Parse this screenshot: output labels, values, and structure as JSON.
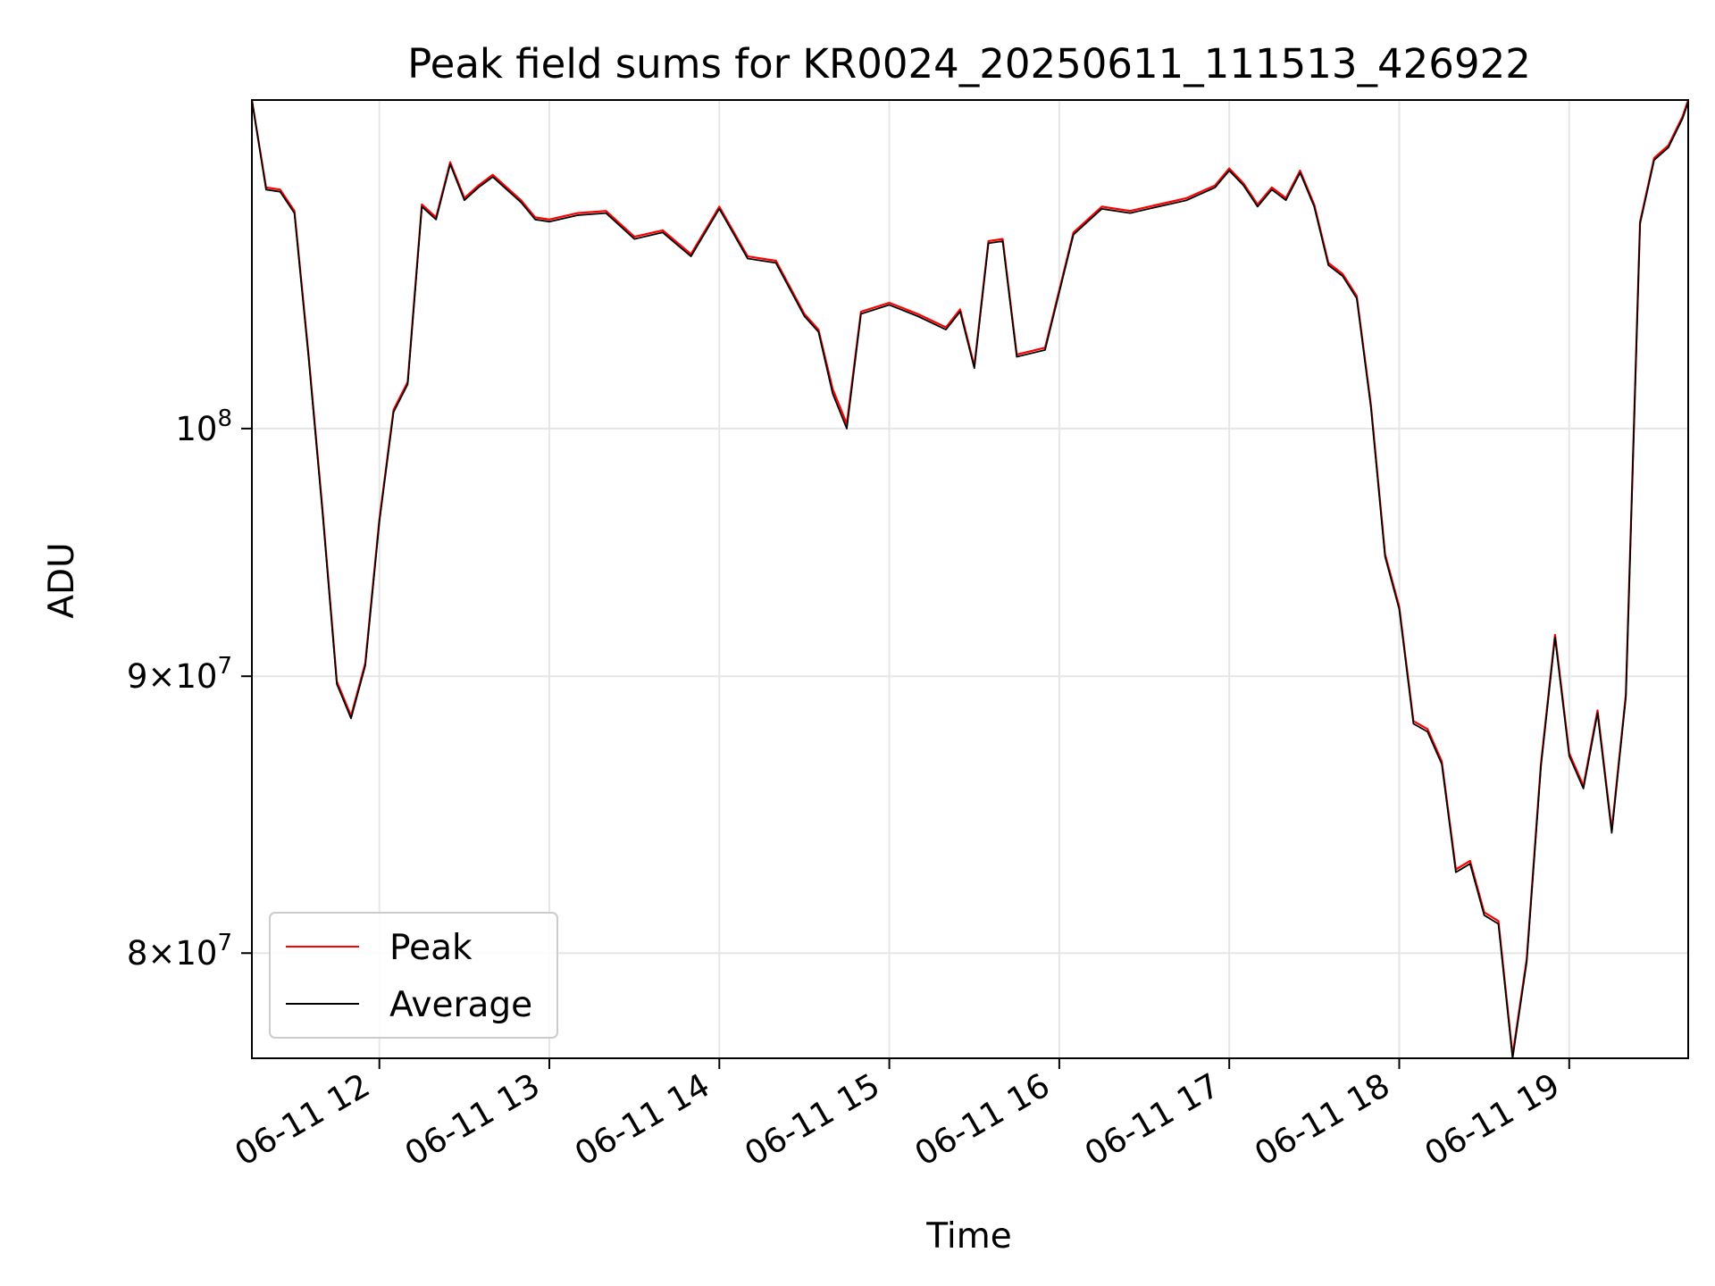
{
  "chart_data": {
    "type": "line",
    "title": "Peak field sums for KR0024_20250611_111513_426922",
    "xlabel": "Time",
    "ylabel": "ADU",
    "yscale": "log",
    "xlim": [
      "2025-06-11 11:15",
      "2025-06-11 19:42"
    ],
    "ylim": [
      76500000,
      115000000
    ],
    "grid": true,
    "legend_position": "lower-left",
    "x_ticks": [
      {
        "value": "2025-06-11 12:00",
        "label": "06-11 12"
      },
      {
        "value": "2025-06-11 13:00",
        "label": "06-11 13"
      },
      {
        "value": "2025-06-11 14:00",
        "label": "06-11 14"
      },
      {
        "value": "2025-06-11 15:00",
        "label": "06-11 15"
      },
      {
        "value": "2025-06-11 16:00",
        "label": "06-11 16"
      },
      {
        "value": "2025-06-11 17:00",
        "label": "06-11 17"
      },
      {
        "value": "2025-06-11 18:00",
        "label": "06-11 18"
      },
      {
        "value": "2025-06-11 19:00",
        "label": "06-11 19"
      }
    ],
    "y_ticks": [
      {
        "value": 80000000,
        "base": "8",
        "exp": "7"
      },
      {
        "value": 90000000,
        "base": "9",
        "exp": "7"
      },
      {
        "value": 100000000,
        "base": "10",
        "exp": "8"
      }
    ],
    "x": [
      "2025-06-11 11:15",
      "2025-06-11 11:20",
      "2025-06-11 11:25",
      "2025-06-11 11:30",
      "2025-06-11 11:35",
      "2025-06-11 11:40",
      "2025-06-11 11:45",
      "2025-06-11 11:50",
      "2025-06-11 11:55",
      "2025-06-11 12:00",
      "2025-06-11 12:05",
      "2025-06-11 12:10",
      "2025-06-11 12:15",
      "2025-06-11 12:20",
      "2025-06-11 12:25",
      "2025-06-11 12:30",
      "2025-06-11 12:35",
      "2025-06-11 12:40",
      "2025-06-11 12:45",
      "2025-06-11 12:50",
      "2025-06-11 12:55",
      "2025-06-11 13:00",
      "2025-06-11 13:10",
      "2025-06-11 13:20",
      "2025-06-11 13:30",
      "2025-06-11 13:40",
      "2025-06-11 13:50",
      "2025-06-11 14:00",
      "2025-06-11 14:10",
      "2025-06-11 14:20",
      "2025-06-11 14:30",
      "2025-06-11 14:35",
      "2025-06-11 14:40",
      "2025-06-11 14:45",
      "2025-06-11 14:50",
      "2025-06-11 15:00",
      "2025-06-11 15:10",
      "2025-06-11 15:20",
      "2025-06-11 15:25",
      "2025-06-11 15:30",
      "2025-06-11 15:35",
      "2025-06-11 15:40",
      "2025-06-11 15:45",
      "2025-06-11 15:55",
      "2025-06-11 16:05",
      "2025-06-11 16:15",
      "2025-06-11 16:25",
      "2025-06-11 16:35",
      "2025-06-11 16:45",
      "2025-06-11 16:55",
      "2025-06-11 17:00",
      "2025-06-11 17:05",
      "2025-06-11 17:10",
      "2025-06-11 17:15",
      "2025-06-11 17:20",
      "2025-06-11 17:25",
      "2025-06-11 17:30",
      "2025-06-11 17:35",
      "2025-06-11 17:40",
      "2025-06-11 17:45",
      "2025-06-11 17:50",
      "2025-06-11 17:55",
      "2025-06-11 18:00",
      "2025-06-11 18:05",
      "2025-06-11 18:10",
      "2025-06-11 18:15",
      "2025-06-11 18:20",
      "2025-06-11 18:25",
      "2025-06-11 18:30",
      "2025-06-11 18:35",
      "2025-06-11 18:40",
      "2025-06-11 18:45",
      "2025-06-11 18:50",
      "2025-06-11 18:55",
      "2025-06-11 19:00",
      "2025-06-11 19:05",
      "2025-06-11 19:10",
      "2025-06-11 19:15",
      "2025-06-11 19:20",
      "2025-06-11 19:25",
      "2025-06-11 19:30",
      "2025-06-11 19:35",
      "2025-06-11 19:40",
      "2025-06-11 19:42"
    ],
    "series": [
      {
        "name": "Peak",
        "color": "#ff0000",
        "values": [
          115000000,
          110800000,
          110700000,
          109700000,
          103200000,
          96500000,
          89800000,
          88500000,
          90500000,
          96200000,
          100800000,
          102000000,
          110000000,
          109400000,
          112000000,
          110300000,
          110900000,
          111400000,
          110800000,
          110200000,
          109400000,
          109300000,
          109600000,
          109700000,
          108500000,
          108800000,
          107700000,
          109900000,
          107600000,
          107400000,
          105000000,
          104300000,
          101700000,
          100200000,
          105100000,
          105500000,
          105000000,
          104400000,
          105200000,
          102700000,
          108300000,
          108400000,
          103200000,
          103500000,
          108700000,
          109900000,
          109700000,
          110000000,
          110300000,
          110900000,
          111700000,
          111000000,
          110000000,
          110800000,
          110300000,
          111600000,
          110000000,
          107300000,
          106800000,
          105800000,
          101000000,
          94800000,
          92700000,
          88300000,
          88000000,
          86800000,
          82900000,
          83200000,
          81400000,
          81100000,
          76600000,
          79800000,
          86700000,
          91600000,
          87100000,
          85900000,
          88700000,
          84300000,
          89300000,
          109200000,
          112200000,
          112800000,
          114200000,
          115000000
        ]
      },
      {
        "name": "Average",
        "color": "#000000",
        "values": [
          115000000,
          110700000,
          110600000,
          109600000,
          103100000,
          96400000,
          89700000,
          88400000,
          90400000,
          96100000,
          100700000,
          101900000,
          109900000,
          109300000,
          111900000,
          110200000,
          110800000,
          111300000,
          110700000,
          110100000,
          109300000,
          109200000,
          109500000,
          109600000,
          108400000,
          108700000,
          107600000,
          109800000,
          107500000,
          107300000,
          104900000,
          104200000,
          101500000,
          100000000,
          105000000,
          105400000,
          104900000,
          104300000,
          105100000,
          102600000,
          108200000,
          108300000,
          103100000,
          103400000,
          108600000,
          109800000,
          109600000,
          109900000,
          110200000,
          110800000,
          111600000,
          110900000,
          109900000,
          110700000,
          110200000,
          111500000,
          109900000,
          107200000,
          106700000,
          105700000,
          100900000,
          94700000,
          92600000,
          88200000,
          87900000,
          86700000,
          82800000,
          83100000,
          81300000,
          81000000,
          76500000,
          79700000,
          86600000,
          91500000,
          87000000,
          85800000,
          88600000,
          84200000,
          89200000,
          109100000,
          112100000,
          112700000,
          114100000,
          114900000
        ]
      }
    ]
  }
}
